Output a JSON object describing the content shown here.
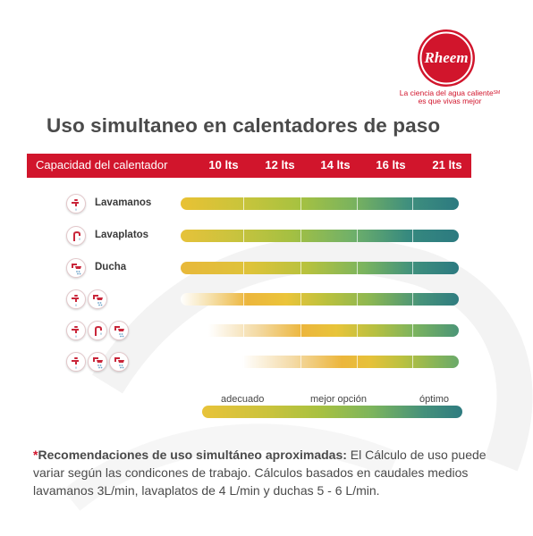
{
  "brand": {
    "name": "Rheem",
    "tagline_line1": "La ciencia del agua caliente",
    "tagline_tm": "SM",
    "tagline_line2": "es que vivas mejor"
  },
  "title": "Uso simultaneo en calentadores de paso",
  "header": {
    "label": "Capacidad del calentador",
    "capacities": [
      "10 lts",
      "12 lts",
      "14 lts",
      "16 lts",
      "21 lts"
    ]
  },
  "rows": [
    {
      "label": "Lavamanos",
      "icons": [
        "faucet-icon"
      ]
    },
    {
      "label": "Lavaplatos",
      "icons": [
        "kitchen-faucet-icon"
      ]
    },
    {
      "label": "Ducha",
      "icons": [
        "shower-icon"
      ]
    },
    {
      "label": "",
      "icons": [
        "faucet-icon",
        "shower-icon"
      ]
    },
    {
      "label": "",
      "icons": [
        "faucet-icon",
        "kitchen-faucet-icon",
        "shower-icon"
      ]
    },
    {
      "label": "",
      "icons": [
        "faucet-icon",
        "shower-icon",
        "shower-icon"
      ]
    }
  ],
  "legend": {
    "adequate": "adecuado",
    "best": "mejor opción",
    "optimal": "óptimo"
  },
  "colors": {
    "brand_red": "#d1152c",
    "adequate": "#e8c33a",
    "best": "#a8c140",
    "optimal": "#2f7c80"
  },
  "footnote": {
    "asterisk": "*",
    "bold": "Recomendaciones de uso simultáneo aproximadas:",
    "text": " El Cálculo de uso puede variar según las condicones de trabajo. Cálculos basados en caudales medios lavamanos 3L/min, lavaplatos de 4 L/min y duchas 5 - 6 L/min."
  }
}
